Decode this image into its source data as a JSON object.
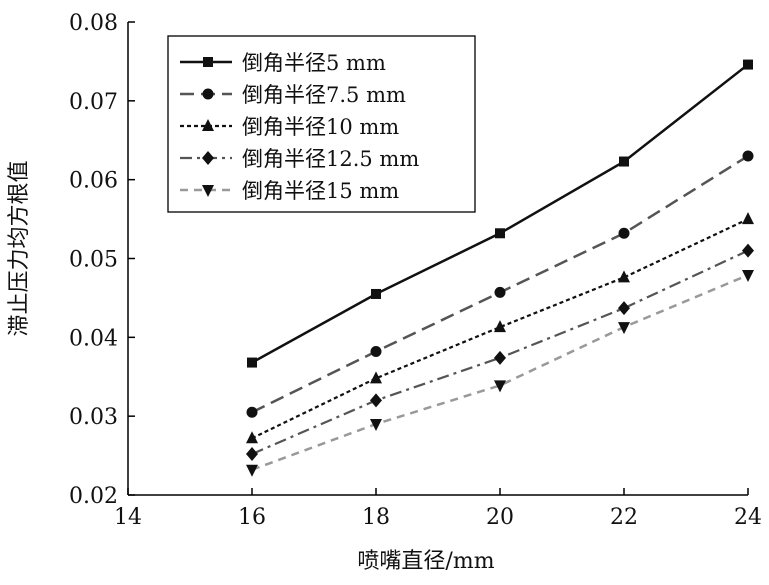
{
  "chart_data": {
    "type": "line",
    "xlabel": "喷嘴直径/mm",
    "ylabel": "滞止压力均方根值",
    "xlim": [
      14,
      24
    ],
    "ylim": [
      0.02,
      0.08
    ],
    "x_ticks": [
      14,
      16,
      18,
      20,
      22,
      24
    ],
    "y_ticks": [
      0.02,
      0.03,
      0.04,
      0.05,
      0.06,
      0.07,
      0.08
    ],
    "x_tick_labels": [
      "14",
      "16",
      "18",
      "20",
      "22",
      "24"
    ],
    "y_tick_labels": [
      "0.02",
      "0.03",
      "0.04",
      "0.05",
      "0.06",
      "0.07",
      "0.08"
    ],
    "grid": false,
    "legend_position": "top-left",
    "x": [
      16,
      18,
      20,
      22,
      24
    ],
    "series": [
      {
        "name": "倒角半径5 mm",
        "values": [
          0.0368,
          0.0455,
          0.0532,
          0.0623,
          0.0746
        ],
        "marker": "square",
        "dash": "solid",
        "color": "#111111"
      },
      {
        "name": "倒角半径7.5 mm",
        "values": [
          0.0305,
          0.0382,
          0.0457,
          0.0532,
          0.063
        ],
        "marker": "circle",
        "dash": "long-dash",
        "color": "#555555"
      },
      {
        "name": "倒角半径10 mm",
        "values": [
          0.0272,
          0.0348,
          0.0413,
          0.0476,
          0.055
        ],
        "marker": "triangle-up",
        "dash": "dotted",
        "color": "#111111"
      },
      {
        "name": "倒角半径12.5 mm",
        "values": [
          0.0252,
          0.032,
          0.0374,
          0.0437,
          0.051
        ],
        "marker": "diamond",
        "dash": "dash-dot",
        "color": "#555555"
      },
      {
        "name": "倒角半径15 mm",
        "values": [
          0.0232,
          0.029,
          0.0339,
          0.0413,
          0.0479
        ],
        "marker": "triangle-down",
        "dash": "dashed",
        "color": "#999999"
      }
    ]
  }
}
